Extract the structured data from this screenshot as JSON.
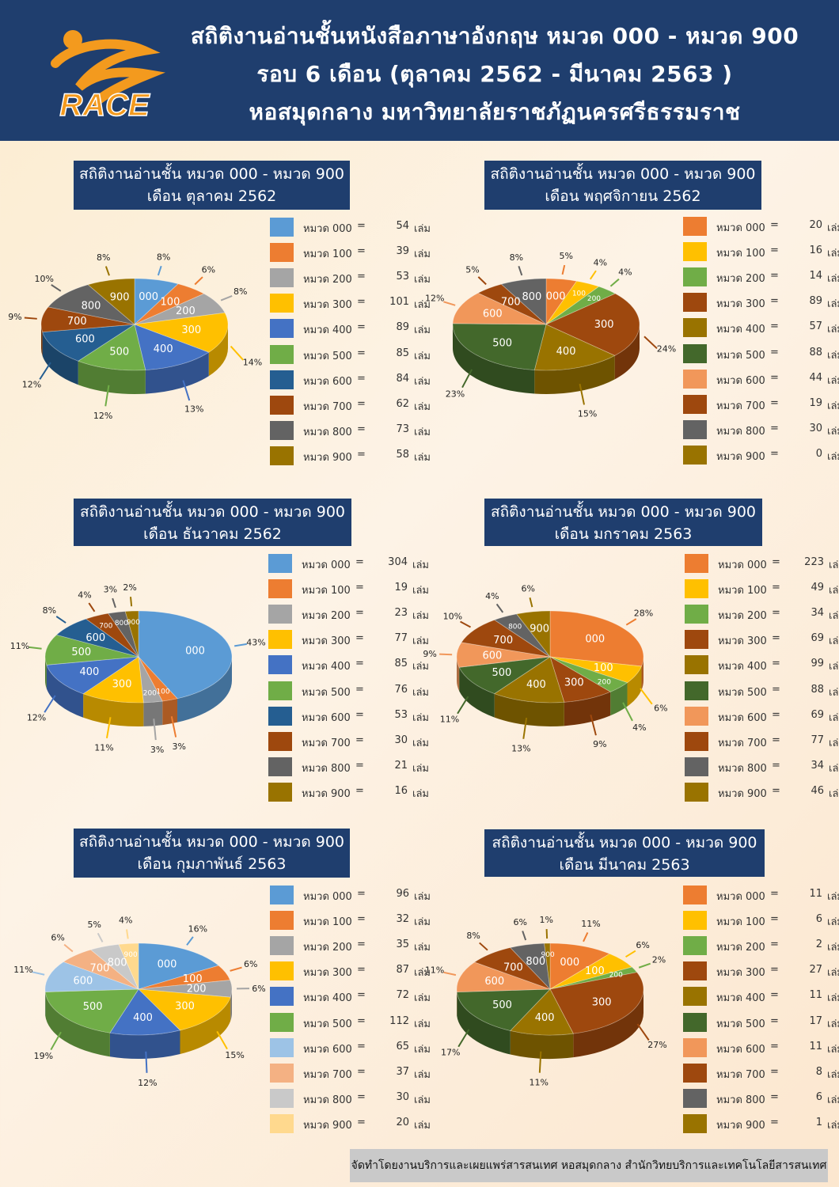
{
  "header": {
    "logo_text": "RACE",
    "line1": "สถิติงานอ่านชั้นหนังสือภาษาอังกฤษ หมวด 000 - หมวด 900",
    "line2": "รอบ 6 เดือน (ตุลาคม 2562 - มีนาคม 2563 )",
    "line3": "หอสมุดกลาง มหาวิทยาลัยราชภัฏนครศรีธรรมราช"
  },
  "footer": "จัดทำโดยงานบริการและเผยแพร่สารสนเทศ หอสมุดกลาง สำนักวิทยบริการและเทคโนโลยีสารสนเทศ",
  "unit": "เล่ม",
  "chart_data": [
    {
      "type": "pie",
      "title": "สถิติงานอ่านชั้น หมวด 000 - หมวด 900",
      "subtitle": "เดือน ตุลาคม 2562",
      "categories": [
        "000",
        "100",
        "200",
        "300",
        "400",
        "500",
        "600",
        "700",
        "800",
        "900"
      ],
      "legend_labels": [
        "หมวด 000",
        "หมวด 100",
        "หมวด 200",
        "หมวด 300",
        "หมวด 400",
        "หมวด 500",
        "หมวด 600",
        "หมวด 700",
        "หมวด 800",
        "หมวด 900"
      ],
      "values": [
        54,
        39,
        53,
        101,
        89,
        85,
        84,
        62,
        73,
        58
      ],
      "percent_labels": [
        "8%",
        "6%",
        "8%",
        "14%",
        "13%",
        "12%",
        "12%",
        "9%",
        "10%",
        "8%"
      ],
      "colors": [
        "#5b9bd5",
        "#ed7d31",
        "#a5a5a5",
        "#ffc000",
        "#4472c4",
        "#70ad47",
        "#255e91",
        "#9e480e",
        "#636363",
        "#997300"
      ],
      "legend_position": "right"
    },
    {
      "type": "pie",
      "title": "สถิติงานอ่านชั้น หมวด 000 - หมวด 900",
      "subtitle": "เดือน พฤศจิกายน 2562",
      "categories": [
        "000",
        "100",
        "200",
        "300",
        "400",
        "500",
        "600",
        "700",
        "800",
        "900"
      ],
      "legend_labels": [
        "หมวด 000",
        "หมวด 100",
        "หมวด 200",
        "หมวด 300",
        "หมวด 400",
        "หมวด 500",
        "หมวด 600",
        "หมวด 700",
        "หมวด 800",
        "หมวด 900"
      ],
      "values": [
        20,
        16,
        14,
        89,
        57,
        88,
        44,
        19,
        30,
        0
      ],
      "percent_labels": [
        "5%",
        "4%",
        "4%",
        "24%",
        "15%",
        "23%",
        "12%",
        "5%",
        "8%",
        ""
      ],
      "colors": [
        "#ed7d31",
        "#ffc000",
        "#70ad47",
        "#9e480e",
        "#997300",
        "#43682b",
        "#f1975a",
        "#9e480e",
        "#636363",
        "#997300"
      ],
      "legend_position": "right"
    },
    {
      "type": "pie",
      "title": "สถิติงานอ่านชั้น หมวด 000 - หมวด 900",
      "subtitle": "เดือน ธันวาคม 2562",
      "categories": [
        "000",
        "100",
        "200",
        "300",
        "400",
        "500",
        "600",
        "700",
        "800",
        "900"
      ],
      "legend_labels": [
        "หมวด 000",
        "หมวด 100",
        "หมวด 200",
        "หมวด 300",
        "หมวด 400",
        "หมวด 500",
        "หมวด 600",
        "หมวด 700",
        "หมวด 800",
        "หมวด 900"
      ],
      "values": [
        304,
        19,
        23,
        77,
        85,
        76,
        53,
        30,
        21,
        16
      ],
      "percent_labels": [
        "43%",
        "3%",
        "3%",
        "11%",
        "12%",
        "11%",
        "8%",
        "4%",
        "3%",
        "2%"
      ],
      "colors": [
        "#5b9bd5",
        "#ed7d31",
        "#a5a5a5",
        "#ffc000",
        "#4472c4",
        "#70ad47",
        "#255e91",
        "#9e480e",
        "#636363",
        "#997300"
      ],
      "legend_position": "right"
    },
    {
      "type": "pie",
      "title": "สถิติงานอ่านชั้น หมวด 000 - หมวด 900",
      "subtitle": "เดือน มกราคม 2563",
      "categories": [
        "000",
        "100",
        "200",
        "300",
        "400",
        "500",
        "600",
        "700",
        "800",
        "900"
      ],
      "legend_labels": [
        "หมวด 000",
        "หมวด 100",
        "หมวด 200",
        "หมวด 300",
        "หมวด 400",
        "หมวด 500",
        "หมวด 600",
        "หมวด 700",
        "หมวด 800",
        "หมวด 900"
      ],
      "values": [
        223,
        49,
        34,
        69,
        99,
        88,
        69,
        77,
        34,
        46
      ],
      "percent_labels": [
        "28%",
        "6%",
        "4%",
        "9%",
        "13%",
        "11%",
        "9%",
        "10%",
        "4%",
        "6%"
      ],
      "colors": [
        "#ed7d31",
        "#ffc000",
        "#70ad47",
        "#9e480e",
        "#997300",
        "#43682b",
        "#f1975a",
        "#9e480e",
        "#636363",
        "#997300"
      ],
      "legend_position": "right"
    },
    {
      "type": "pie",
      "title": "สถิติงานอ่านชั้น หมวด 000 - หมวด 900",
      "subtitle": "เดือน กุมภาพันธ์ 2563",
      "categories": [
        "000",
        "100",
        "200",
        "300",
        "400",
        "500",
        "600",
        "700",
        "800",
        "900"
      ],
      "legend_labels": [
        "หมวด 000",
        "หมวด 100",
        "หมวด 200",
        "หมวด 300",
        "หมวด 400",
        "หมวด 500",
        "หมวด 600",
        "หมวด 700",
        "หมวด 800",
        "หมวด 900"
      ],
      "values": [
        96,
        32,
        35,
        87,
        72,
        112,
        65,
        37,
        30,
        20
      ],
      "percent_labels": [
        "16%",
        "6%",
        "6%",
        "15%",
        "12%",
        "19%",
        "11%",
        "6%",
        "5%",
        "4%"
      ],
      "colors": [
        "#5b9bd5",
        "#ed7d31",
        "#a5a5a5",
        "#ffc000",
        "#4472c4",
        "#70ad47",
        "#9dc3e6",
        "#f4b183",
        "#c9c9c9",
        "#ffd98e"
      ],
      "legend_position": "right"
    },
    {
      "type": "pie",
      "title": "สถิติงานอ่านชั้น หมวด 000 - หมวด 900",
      "subtitle": "เดือน มีนาคม 2563",
      "categories": [
        "000",
        "100",
        "200",
        "300",
        "400",
        "500",
        "600",
        "700",
        "800",
        "900"
      ],
      "legend_labels": [
        "หมวด 000",
        "หมวด 100",
        "หมวด 200",
        "หมวด 300",
        "หมวด 400",
        "หมวด 500",
        "หมวด 600",
        "หมวด 700",
        "หมวด 800",
        "หมวด 900"
      ],
      "values": [
        11,
        6,
        2,
        27,
        11,
        17,
        11,
        8,
        6,
        1
      ],
      "percent_labels": [
        "11%",
        "6%",
        "2%",
        "27%",
        "11%",
        "17%",
        "11%",
        "8%",
        "6%",
        "1%"
      ],
      "colors": [
        "#ed7d31",
        "#ffc000",
        "#70ad47",
        "#9e480e",
        "#997300",
        "#43682b",
        "#f1975a",
        "#9e480e",
        "#636363",
        "#997300"
      ],
      "legend_position": "right"
    }
  ]
}
